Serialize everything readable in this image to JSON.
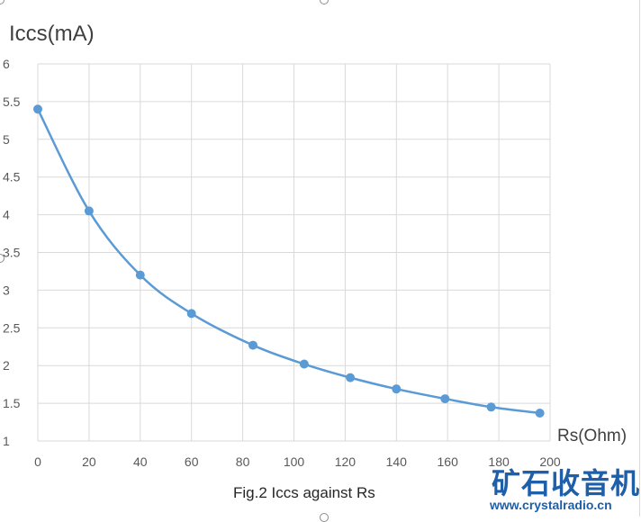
{
  "chart_data": {
    "type": "scatter",
    "title": "",
    "caption": "Fig.2 Iccs against Rs",
    "xlabel": "Rs(Ohm)",
    "ylabel": "Iccs(mA)",
    "xlim": [
      0,
      200
    ],
    "ylim": [
      1,
      6
    ],
    "x_ticks": [
      "0",
      "20",
      "40",
      "60",
      "80",
      "100",
      "120",
      "140",
      "160",
      "180",
      "200"
    ],
    "y_ticks": [
      "1",
      "1.5",
      "2",
      "2.5",
      "3",
      "3.5",
      "4",
      "4.5",
      "5",
      "5.5",
      "6"
    ],
    "grid": true,
    "smooth_line": true,
    "series_color": "#5b9bd5",
    "series": [
      {
        "x": [
          0,
          20,
          40,
          60,
          84,
          104,
          122,
          140,
          159,
          177,
          196
        ],
        "y": [
          5.4,
          4.05,
          3.2,
          2.69,
          2.27,
          2.02,
          1.84,
          1.69,
          1.56,
          1.45,
          1.37
        ]
      }
    ]
  },
  "watermark": {
    "cn": "矿石收音机",
    "url": "www.crystalradio.cn"
  }
}
